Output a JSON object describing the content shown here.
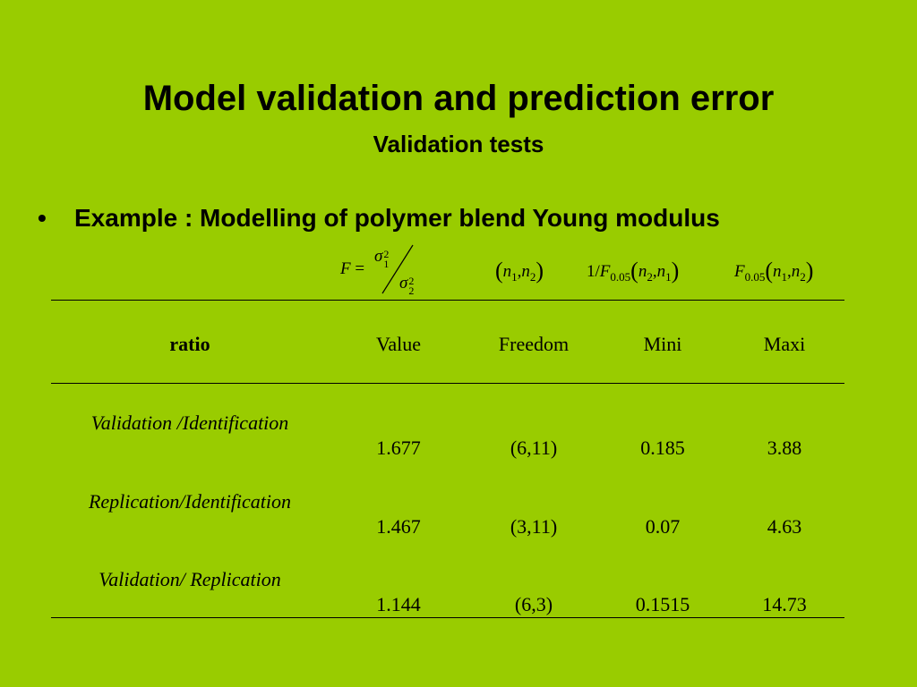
{
  "slide": {
    "title": "Model validation and prediction error",
    "subtitle": "Validation tests",
    "bullet": "Example : Modelling of polymer blend Young modulus",
    "f_ratio": {
      "lhs": "F",
      "eq": "=",
      "num": {
        "base": "σ",
        "sup": "2",
        "sub": "1"
      },
      "den": {
        "base": "σ",
        "sup": "2",
        "sub": "2"
      }
    },
    "formulas": [
      [
        {
          "t": "("
        },
        {
          "t": "n"
        },
        {
          "t": "1",
          "pos": "sub"
        },
        {
          "t": ","
        },
        {
          "t": "n"
        },
        {
          "t": "2",
          "pos": "sub"
        },
        {
          "t": ")"
        }
      ],
      [
        {
          "t": "1/"
        },
        {
          "t": "F"
        },
        {
          "t": "0.05",
          "pos": "sub"
        },
        {
          "t": "("
        },
        {
          "t": "n"
        },
        {
          "t": "2",
          "pos": "sub"
        },
        {
          "t": ","
        },
        {
          "t": "n"
        },
        {
          "t": "1",
          "pos": "sub"
        },
        {
          "t": ")"
        }
      ],
      [
        {
          "t": "F"
        },
        {
          "t": "0.05",
          "pos": "sub"
        },
        {
          "t": "("
        },
        {
          "t": "n"
        },
        {
          "t": "1",
          "pos": "sub"
        },
        {
          "t": ","
        },
        {
          "t": "n"
        },
        {
          "t": "2",
          "pos": "sub"
        },
        {
          "t": ")"
        }
      ]
    ],
    "table": {
      "header": [
        "ratio",
        "Value",
        "Freedom",
        "Mini",
        "Maxi"
      ],
      "rows": [
        [
          "Validation /Identification",
          1.677,
          "(6,11)",
          0.185,
          3.88
        ],
        [
          "Replication/Identification",
          1.467,
          "(3,11)",
          0.07,
          4.63
        ],
        [
          "Validation/ Replication",
          1.144,
          "(6,3)",
          0.1515,
          14.73
        ]
      ]
    }
  }
}
